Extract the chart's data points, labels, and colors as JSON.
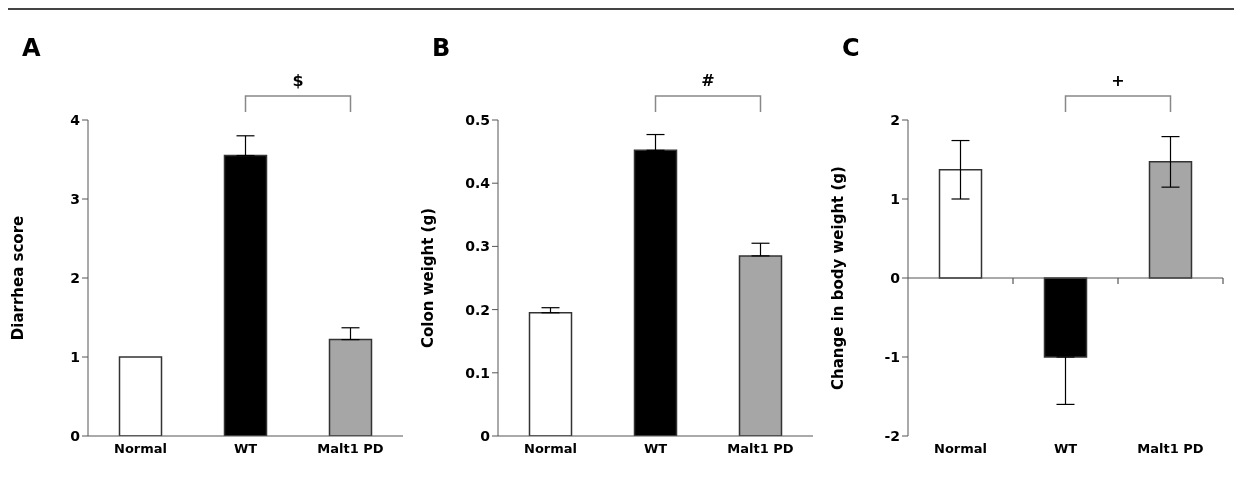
{
  "chart_data": [
    {
      "type": "bar",
      "title": "A",
      "ylabel": "Diarrhea score",
      "categories": [
        "Normal",
        "WT",
        "Malt1 PD"
      ],
      "values": [
        1.0,
        3.55,
        1.22
      ],
      "colors": [
        "#ffffff",
        "#000000",
        "#a6a6a6"
      ],
      "errors": [
        null,
        [
          3.55,
          3.8
        ],
        [
          1.22,
          1.37
        ]
      ],
      "ylim": [
        0,
        4
      ],
      "yticks": [
        0,
        1,
        2,
        3,
        4
      ],
      "grid": false,
      "annotations": [
        "$"
      ]
    },
    {
      "type": "bar",
      "title": "B",
      "ylabel": "Colon weight (g)",
      "categories": [
        "Normal",
        "WT",
        "Malt1 PD"
      ],
      "values": [
        0.195,
        0.452,
        0.285
      ],
      "colors": [
        "#ffffff",
        "#000000",
        "#a6a6a6"
      ],
      "errors": [
        [
          0.195,
          0.203
        ],
        [
          0.452,
          0.477
        ],
        [
          0.285,
          0.305
        ]
      ],
      "ylim": [
        0,
        0.5
      ],
      "yticks": [
        0,
        0.1,
        0.2,
        0.3,
        0.4,
        0.5
      ],
      "grid": false,
      "annotations": [
        "#"
      ]
    },
    {
      "type": "bar",
      "title": "C",
      "ylabel": "Change in body weight (g)",
      "categories": [
        "Normal",
        "WT",
        "Malt1 PD"
      ],
      "values": [
        1.37,
        -1.0,
        1.47
      ],
      "colors": [
        "#ffffff",
        "#000000",
        "#a6a6a6"
      ],
      "errors": [
        [
          1.0,
          1.74
        ],
        [
          -1.6,
          -1.0
        ],
        [
          1.15,
          1.79
        ]
      ],
      "ylim": [
        -2,
        2
      ],
      "yticks": [
        -2,
        -1,
        0,
        1,
        2
      ],
      "annotations": [
        "+"
      ]
    }
  ]
}
